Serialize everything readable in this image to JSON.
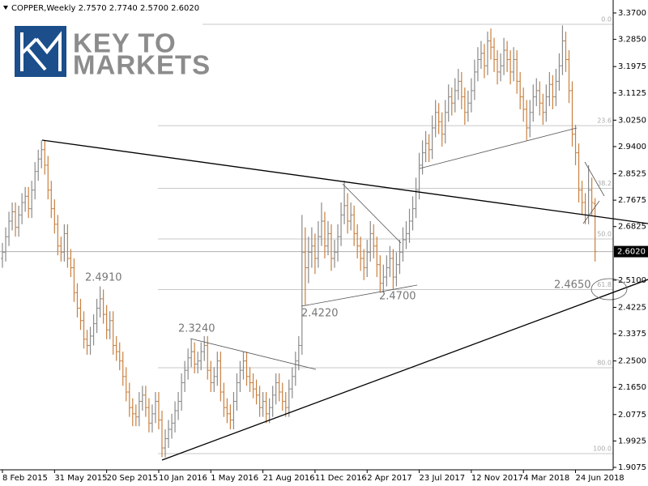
{
  "logo": {
    "line1": "KEY TO",
    "line2": "MARKETS"
  },
  "chart_data": {
    "type": "ohlc",
    "title": "COPPER,Weekly  2.7570 2.7740 2.5700 2.6020",
    "up_color": "#8a8a8a",
    "down_color": "#c9803f",
    "ylim": [
      1.8997,
      3.4065
    ],
    "yticks": [
      {
        "value": 3.37,
        "label": "3.3700"
      },
      {
        "value": 3.285,
        "label": "3.2850"
      },
      {
        "value": 3.1975,
        "label": "3.1975"
      },
      {
        "value": 3.1125,
        "label": "3.1125"
      },
      {
        "value": 3.025,
        "label": "3.0250"
      },
      {
        "value": 2.94,
        "label": "2.9400"
      },
      {
        "value": 2.8525,
        "label": "2.8525"
      },
      {
        "value": 2.7675,
        "label": "2.7675"
      },
      {
        "value": 2.6825,
        "label": "2.6825"
      },
      {
        "value": 2.51,
        "label": "2.5100"
      },
      {
        "value": 2.4225,
        "label": "2.4225"
      },
      {
        "value": 2.3375,
        "label": "2.3375"
      },
      {
        "value": 2.25,
        "label": "2.2500"
      },
      {
        "value": 2.165,
        "label": "2.1650"
      },
      {
        "value": 2.0775,
        "label": "2.0775"
      },
      {
        "value": 1.9925,
        "label": "1.9925"
      },
      {
        "value": 1.9075,
        "label": "1.9075"
      }
    ],
    "xticks": [
      {
        "value": 0,
        "label": "8 Feb 2015"
      },
      {
        "value": 16,
        "label": "31 May 2015"
      },
      {
        "value": 32,
        "label": "20 Sep 2015"
      },
      {
        "value": 48,
        "label": "10 Jan 2016"
      },
      {
        "value": 64,
        "label": "1 May 2016"
      },
      {
        "value": 80,
        "label": "21 Aug 2016"
      },
      {
        "value": 96,
        "label": "11 Dec 2016"
      },
      {
        "value": 112,
        "label": "2 Apr 2017"
      },
      {
        "value": 128,
        "label": "23 Jul 2017"
      },
      {
        "value": 144,
        "label": "12 Nov 2017"
      },
      {
        "value": 160,
        "label": "4 Mar 2018"
      },
      {
        "value": 176,
        "label": "24 Jun 2018"
      }
    ],
    "current_price": {
      "value": 2.602,
      "label": "2.6020"
    },
    "fib_levels": [
      {
        "value": 0,
        "label": "0.0"
      },
      {
        "value": 23.6,
        "label": "23.6"
      },
      {
        "value": 38.2,
        "label": "38.2"
      },
      {
        "value": 50,
        "label": "50.0"
      },
      {
        "value": 61.8,
        "label": "61.8"
      },
      {
        "value": 80,
        "label": "80.0"
      },
      {
        "value": 100,
        "label": "100.0"
      }
    ],
    "annotations": [
      "2.4910",
      "2.3240",
      "2.4220",
      "2.4700",
      "2.4650"
    ],
    "bars": [
      [
        2.58,
        2.63,
        2.55,
        2.6
      ],
      [
        2.6,
        2.68,
        2.57,
        2.65
      ],
      [
        2.65,
        2.73,
        2.62,
        2.7
      ],
      [
        2.7,
        2.76,
        2.67,
        2.73
      ],
      [
        2.73,
        2.76,
        2.65,
        2.68
      ],
      [
        2.68,
        2.75,
        2.65,
        2.72
      ],
      [
        2.72,
        2.79,
        2.69,
        2.76
      ],
      [
        2.76,
        2.81,
        2.73,
        2.78
      ],
      [
        2.78,
        2.81,
        2.71,
        2.74
      ],
      [
        2.74,
        2.83,
        2.71,
        2.8
      ],
      [
        2.8,
        2.89,
        2.77,
        2.86
      ],
      [
        2.86,
        2.93,
        2.83,
        2.9
      ],
      [
        2.9,
        2.96,
        2.87,
        2.93
      ],
      [
        2.93,
        2.96,
        2.85,
        2.88
      ],
      [
        2.88,
        2.91,
        2.77,
        2.8
      ],
      [
        2.8,
        2.83,
        2.71,
        2.74
      ],
      [
        2.74,
        2.77,
        2.66,
        2.69
      ],
      [
        2.69,
        2.72,
        2.59,
        2.62
      ],
      [
        2.62,
        2.65,
        2.57,
        2.6
      ],
      [
        2.6,
        2.69,
        2.57,
        2.66
      ],
      [
        2.66,
        2.69,
        2.55,
        2.58
      ],
      [
        2.58,
        2.61,
        2.52,
        2.55
      ],
      [
        2.55,
        2.58,
        2.44,
        2.47
      ],
      [
        2.47,
        2.5,
        2.39,
        2.42
      ],
      [
        2.42,
        2.45,
        2.35,
        2.38
      ],
      [
        2.38,
        2.41,
        2.29,
        2.32
      ],
      [
        2.32,
        2.35,
        2.27,
        2.3
      ],
      [
        2.3,
        2.36,
        2.27,
        2.33
      ],
      [
        2.33,
        2.4,
        2.3,
        2.37
      ],
      [
        2.37,
        2.45,
        2.34,
        2.42
      ],
      [
        2.42,
        2.49,
        2.39,
        2.45
      ],
      [
        2.45,
        2.48,
        2.37,
        2.4
      ],
      [
        2.4,
        2.43,
        2.32,
        2.35
      ],
      [
        2.35,
        2.41,
        2.32,
        2.38
      ],
      [
        2.38,
        2.41,
        2.27,
        2.3
      ],
      [
        2.3,
        2.33,
        2.25,
        2.28
      ],
      [
        2.28,
        2.31,
        2.22,
        2.25
      ],
      [
        2.25,
        2.28,
        2.17,
        2.2
      ],
      [
        2.2,
        2.23,
        2.12,
        2.15
      ],
      [
        2.15,
        2.18,
        2.07,
        2.1
      ],
      [
        2.1,
        2.13,
        2.04,
        2.08
      ],
      [
        2.08,
        2.11,
        2.04,
        2.07
      ],
      [
        2.07,
        2.15,
        2.04,
        2.12
      ],
      [
        2.12,
        2.17,
        2.09,
        2.14
      ],
      [
        2.14,
        2.17,
        2.07,
        2.1
      ],
      [
        2.1,
        2.13,
        2.02,
        2.05
      ],
      [
        2.05,
        2.11,
        2.02,
        2.08
      ],
      [
        2.08,
        2.15,
        2.05,
        2.12
      ],
      [
        2.12,
        2.15,
        2.03,
        2.06
      ],
      [
        2.06,
        2.09,
        1.94,
        1.97
      ],
      [
        1.97,
        2.03,
        1.94,
        2.0
      ],
      [
        2.0,
        2.06,
        1.97,
        2.03
      ],
      [
        2.03,
        2.08,
        2.0,
        2.05
      ],
      [
        2.05,
        2.12,
        2.02,
        2.09
      ],
      [
        2.09,
        2.15,
        2.06,
        2.12
      ],
      [
        2.12,
        2.21,
        2.09,
        2.18
      ],
      [
        2.18,
        2.25,
        2.15,
        2.22
      ],
      [
        2.22,
        2.29,
        2.19,
        2.26
      ],
      [
        2.26,
        2.32,
        2.23,
        2.28
      ],
      [
        2.28,
        2.31,
        2.21,
        2.24
      ],
      [
        2.24,
        2.28,
        2.21,
        2.25
      ],
      [
        2.25,
        2.31,
        2.22,
        2.28
      ],
      [
        2.28,
        2.33,
        2.25,
        2.3
      ],
      [
        2.3,
        2.33,
        2.19,
        2.22
      ],
      [
        2.22,
        2.25,
        2.15,
        2.18
      ],
      [
        2.18,
        2.23,
        2.15,
        2.2
      ],
      [
        2.2,
        2.28,
        2.17,
        2.25
      ],
      [
        2.25,
        2.28,
        2.12,
        2.15
      ],
      [
        2.15,
        2.18,
        2.07,
        2.1
      ],
      [
        2.1,
        2.13,
        2.05,
        2.08
      ],
      [
        2.08,
        2.11,
        2.03,
        2.06
      ],
      [
        2.06,
        2.15,
        2.03,
        2.12
      ],
      [
        2.12,
        2.21,
        2.09,
        2.18
      ],
      [
        2.18,
        2.25,
        2.15,
        2.22
      ],
      [
        2.22,
        2.28,
        2.19,
        2.25
      ],
      [
        2.25,
        2.28,
        2.17,
        2.2
      ],
      [
        2.2,
        2.23,
        2.15,
        2.18
      ],
      [
        2.18,
        2.21,
        2.13,
        2.16
      ],
      [
        2.16,
        2.19,
        2.11,
        2.14
      ],
      [
        2.14,
        2.17,
        2.07,
        2.1
      ],
      [
        2.1,
        2.15,
        2.07,
        2.12
      ],
      [
        2.12,
        2.15,
        2.05,
        2.08
      ],
      [
        2.08,
        2.13,
        2.05,
        2.1
      ],
      [
        2.1,
        2.17,
        2.07,
        2.14
      ],
      [
        2.14,
        2.21,
        2.11,
        2.18
      ],
      [
        2.18,
        2.21,
        2.12,
        2.15
      ],
      [
        2.15,
        2.18,
        2.09,
        2.12
      ],
      [
        2.12,
        2.15,
        2.07,
        2.1
      ],
      [
        2.1,
        2.19,
        2.07,
        2.16
      ],
      [
        2.16,
        2.23,
        2.13,
        2.2
      ],
      [
        2.2,
        2.28,
        2.17,
        2.25
      ],
      [
        2.25,
        2.33,
        2.22,
        2.3
      ],
      [
        2.3,
        2.72,
        2.27,
        2.6
      ],
      [
        2.6,
        2.68,
        2.43,
        2.55
      ],
      [
        2.55,
        2.65,
        2.5,
        2.6
      ],
      [
        2.6,
        2.68,
        2.55,
        2.62
      ],
      [
        2.62,
        2.66,
        2.53,
        2.58
      ],
      [
        2.58,
        2.7,
        2.55,
        2.65
      ],
      [
        2.65,
        2.76,
        2.62,
        2.7
      ],
      [
        2.7,
        2.73,
        2.58,
        2.62
      ],
      [
        2.62,
        2.7,
        2.59,
        2.66
      ],
      [
        2.66,
        2.69,
        2.54,
        2.58
      ],
      [
        2.58,
        2.64,
        2.55,
        2.6
      ],
      [
        2.6,
        2.69,
        2.57,
        2.65
      ],
      [
        2.65,
        2.76,
        2.62,
        2.72
      ],
      [
        2.72,
        2.83,
        2.69,
        2.75
      ],
      [
        2.75,
        2.79,
        2.66,
        2.7
      ],
      [
        2.7,
        2.76,
        2.67,
        2.72
      ],
      [
        2.72,
        2.75,
        2.62,
        2.66
      ],
      [
        2.66,
        2.69,
        2.58,
        2.62
      ],
      [
        2.62,
        2.65,
        2.54,
        2.58
      ],
      [
        2.58,
        2.61,
        2.51,
        2.55
      ],
      [
        2.55,
        2.64,
        2.52,
        2.6
      ],
      [
        2.6,
        2.7,
        2.57,
        2.66
      ],
      [
        2.66,
        2.69,
        2.58,
        2.62
      ],
      [
        2.62,
        2.65,
        2.52,
        2.56
      ],
      [
        2.56,
        2.59,
        2.47,
        2.5
      ],
      [
        2.5,
        2.56,
        2.47,
        2.52
      ],
      [
        2.52,
        2.59,
        2.49,
        2.55
      ],
      [
        2.55,
        2.62,
        2.52,
        2.58
      ],
      [
        2.58,
        2.61,
        2.48,
        2.52
      ],
      [
        2.52,
        2.6,
        2.49,
        2.56
      ],
      [
        2.56,
        2.64,
        2.53,
        2.6
      ],
      [
        2.6,
        2.68,
        2.57,
        2.64
      ],
      [
        2.64,
        2.7,
        2.61,
        2.66
      ],
      [
        2.66,
        2.74,
        2.63,
        2.7
      ],
      [
        2.7,
        2.78,
        2.67,
        2.74
      ],
      [
        2.74,
        2.84,
        2.71,
        2.8
      ],
      [
        2.8,
        2.92,
        2.77,
        2.88
      ],
      [
        2.88,
        2.96,
        2.85,
        2.92
      ],
      [
        2.92,
        2.99,
        2.89,
        2.95
      ],
      [
        2.95,
        2.98,
        2.89,
        2.93
      ],
      [
        2.93,
        3.04,
        2.9,
        3.0
      ],
      [
        3.0,
        3.09,
        2.97,
        3.05
      ],
      [
        3.05,
        3.08,
        2.98,
        3.02
      ],
      [
        3.02,
        3.05,
        2.94,
        2.98
      ],
      [
        2.98,
        3.09,
        2.95,
        3.05
      ],
      [
        3.05,
        3.14,
        3.02,
        3.1
      ],
      [
        3.1,
        3.13,
        3.04,
        3.08
      ],
      [
        3.08,
        3.16,
        3.05,
        3.12
      ],
      [
        3.12,
        3.19,
        3.09,
        3.15
      ],
      [
        3.15,
        3.18,
        3.06,
        3.1
      ],
      [
        3.1,
        3.13,
        3.01,
        3.05
      ],
      [
        3.05,
        3.12,
        3.02,
        3.08
      ],
      [
        3.08,
        3.16,
        3.05,
        3.12
      ],
      [
        3.12,
        3.22,
        3.09,
        3.18
      ],
      [
        3.18,
        3.26,
        3.15,
        3.22
      ],
      [
        3.22,
        3.28,
        3.19,
        3.24
      ],
      [
        3.24,
        3.27,
        3.16,
        3.2
      ],
      [
        3.2,
        3.31,
        3.17,
        3.28
      ],
      [
        3.28,
        3.32,
        3.22,
        3.26
      ],
      [
        3.26,
        3.29,
        3.18,
        3.22
      ],
      [
        3.22,
        3.25,
        3.14,
        3.18
      ],
      [
        3.18,
        3.24,
        3.15,
        3.2
      ],
      [
        3.2,
        3.29,
        3.17,
        3.25
      ],
      [
        3.25,
        3.28,
        3.18,
        3.22
      ],
      [
        3.22,
        3.25,
        3.14,
        3.18
      ],
      [
        3.18,
        3.26,
        3.15,
        3.22
      ],
      [
        3.22,
        3.25,
        3.11,
        3.15
      ],
      [
        3.15,
        3.18,
        3.06,
        3.1
      ],
      [
        3.1,
        3.13,
        3.02,
        3.06
      ],
      [
        3.06,
        3.09,
        2.96,
        3.0
      ],
      [
        3.0,
        3.09,
        2.97,
        3.05
      ],
      [
        3.05,
        3.14,
        3.02,
        3.1
      ],
      [
        3.1,
        3.16,
        3.07,
        3.12
      ],
      [
        3.12,
        3.15,
        3.04,
        3.08
      ],
      [
        3.08,
        3.11,
        3.01,
        3.05
      ],
      [
        3.05,
        3.14,
        3.02,
        3.1
      ],
      [
        3.1,
        3.18,
        3.07,
        3.14
      ],
      [
        3.14,
        3.17,
        3.06,
        3.1
      ],
      [
        3.1,
        3.19,
        3.07,
        3.15
      ],
      [
        3.15,
        3.24,
        3.12,
        3.2
      ],
      [
        3.2,
        3.33,
        3.17,
        3.28
      ],
      [
        3.28,
        3.31,
        3.18,
        3.22
      ],
      [
        3.22,
        3.25,
        3.08,
        3.12
      ],
      [
        3.12,
        3.15,
        2.94,
        2.98
      ],
      [
        2.98,
        3.01,
        2.88,
        2.92
      ],
      [
        2.92,
        2.95,
        2.76,
        2.8
      ],
      [
        2.8,
        2.83,
        2.72,
        2.76
      ],
      [
        2.76,
        2.79,
        2.69,
        2.72
      ],
      [
        2.72,
        2.88,
        2.69,
        2.8
      ],
      [
        2.8,
        2.84,
        2.72,
        2.76
      ],
      [
        2.757,
        2.774,
        2.57,
        2.602
      ]
    ]
  }
}
